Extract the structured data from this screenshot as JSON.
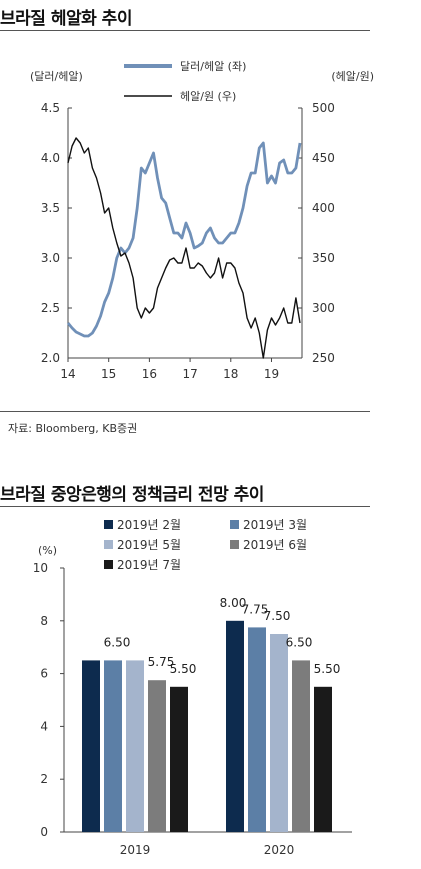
{
  "chart1": {
    "title": "브라질 헤알화 추이",
    "left_axis_label": "(달러/헤알)",
    "right_axis_label": "(헤알/원)",
    "source": "자료: Bloomberg, KB증권"
  },
  "chart2": {
    "title": "브라질 중앙은행의 정책금리 전망 추이",
    "y_unit": "(%)",
    "source": ""
  },
  "chart_data": [
    {
      "type": "line",
      "x_ticks": [
        "14",
        "15",
        "16",
        "17",
        "18",
        "19"
      ],
      "x_range": [
        2014.0,
        2019.75
      ],
      "ylim_left": [
        2.0,
        4.5
      ],
      "yticks_left": [
        "2.0",
        "2.5",
        "3.0",
        "3.5",
        "4.0",
        "4.5"
      ],
      "ylim_right": [
        250,
        500
      ],
      "yticks_right": [
        "250",
        "300",
        "350",
        "400",
        "450",
        "500"
      ],
      "legend_position": "top",
      "series": [
        {
          "name": "달러/헤알 (좌)",
          "axis": "left",
          "color": "#7090b8",
          "x": [
            2014.0,
            2014.1,
            2014.2,
            2014.3,
            2014.4,
            2014.5,
            2014.6,
            2014.7,
            2014.8,
            2014.9,
            2015.0,
            2015.1,
            2015.2,
            2015.3,
            2015.4,
            2015.5,
            2015.6,
            2015.7,
            2015.8,
            2015.9,
            2016.0,
            2016.1,
            2016.2,
            2016.3,
            2016.4,
            2016.5,
            2016.6,
            2016.7,
            2016.8,
            2016.9,
            2017.0,
            2017.1,
            2017.2,
            2017.3,
            2017.4,
            2017.5,
            2017.6,
            2017.7,
            2017.8,
            2017.9,
            2018.0,
            2018.1,
            2018.2,
            2018.3,
            2018.4,
            2018.5,
            2018.6,
            2018.7,
            2018.8,
            2018.9,
            2019.0,
            2019.1,
            2019.2,
            2019.3,
            2019.4,
            2019.5,
            2019.6,
            2019.7
          ],
          "y": [
            2.35,
            2.3,
            2.26,
            2.24,
            2.22,
            2.22,
            2.25,
            2.32,
            2.42,
            2.56,
            2.65,
            2.8,
            3.0,
            3.1,
            3.05,
            3.1,
            3.2,
            3.5,
            3.9,
            3.85,
            3.95,
            4.05,
            3.8,
            3.6,
            3.55,
            3.4,
            3.25,
            3.25,
            3.2,
            3.35,
            3.25,
            3.1,
            3.12,
            3.15,
            3.25,
            3.3,
            3.2,
            3.15,
            3.15,
            3.2,
            3.25,
            3.25,
            3.35,
            3.5,
            3.72,
            3.85,
            3.85,
            4.1,
            4.15,
            3.75,
            3.82,
            3.75,
            3.95,
            3.98,
            3.85,
            3.85,
            3.9,
            4.15
          ]
        },
        {
          "name": "헤알/원 (우)",
          "axis": "right",
          "color": "#111111",
          "x": [
            2014.0,
            2014.1,
            2014.2,
            2014.3,
            2014.4,
            2014.5,
            2014.6,
            2014.7,
            2014.8,
            2014.9,
            2015.0,
            2015.1,
            2015.2,
            2015.3,
            2015.4,
            2015.5,
            2015.6,
            2015.7,
            2015.8,
            2015.9,
            2016.0,
            2016.1,
            2016.2,
            2016.3,
            2016.4,
            2016.5,
            2016.6,
            2016.7,
            2016.8,
            2016.9,
            2017.0,
            2017.1,
            2017.2,
            2017.3,
            2017.4,
            2017.5,
            2017.6,
            2017.7,
            2017.8,
            2017.9,
            2018.0,
            2018.1,
            2018.2,
            2018.3,
            2018.4,
            2018.5,
            2018.6,
            2018.7,
            2018.8,
            2018.9,
            2019.0,
            2019.1,
            2019.2,
            2019.3,
            2019.4,
            2019.5,
            2019.6,
            2019.7
          ],
          "y": [
            445,
            462,
            470,
            465,
            455,
            460,
            440,
            430,
            415,
            395,
            400,
            380,
            365,
            352,
            355,
            345,
            330,
            300,
            290,
            300,
            295,
            300,
            320,
            330,
            340,
            348,
            350,
            345,
            345,
            360,
            340,
            340,
            345,
            342,
            335,
            330,
            335,
            350,
            330,
            345,
            345,
            340,
            325,
            315,
            290,
            280,
            290,
            275,
            250,
            278,
            290,
            283,
            290,
            300,
            285,
            285,
            310,
            285
          ]
        }
      ]
    },
    {
      "type": "bar",
      "categories": [
        "2019",
        "2020"
      ],
      "ylim": [
        0,
        10
      ],
      "yticks": [
        "0",
        "2",
        "4",
        "6",
        "8",
        "10"
      ],
      "legend_position": "top",
      "series": [
        {
          "name": "2019년 2월",
          "color": "#0d2b4e",
          "values": [
            6.5,
            8.0
          ]
        },
        {
          "name": "2019년 3월",
          "color": "#5c7fa6",
          "values": [
            6.5,
            7.75
          ]
        },
        {
          "name": "2019년 5월",
          "color": "#a4b4cc",
          "values": [
            6.5,
            7.5
          ]
        },
        {
          "name": "2019년 6월",
          "color": "#7c7c7c",
          "values": [
            5.75,
            6.5
          ]
        },
        {
          "name": "2019년 7월",
          "color": "#1a1a1a",
          "values": [
            5.5,
            5.5
          ]
        }
      ],
      "data_labels": [
        {
          "text": "6.50",
          "category": 0
        },
        {
          "text": "5.75",
          "category": 0
        },
        {
          "text": "5.50",
          "category": 0
        },
        {
          "text": "8.00",
          "category": 1
        },
        {
          "text": "7.75",
          "category": 1
        },
        {
          "text": "7.50",
          "category": 1
        },
        {
          "text": "6.50",
          "category": 1
        },
        {
          "text": "5.50",
          "category": 1
        }
      ]
    }
  ]
}
